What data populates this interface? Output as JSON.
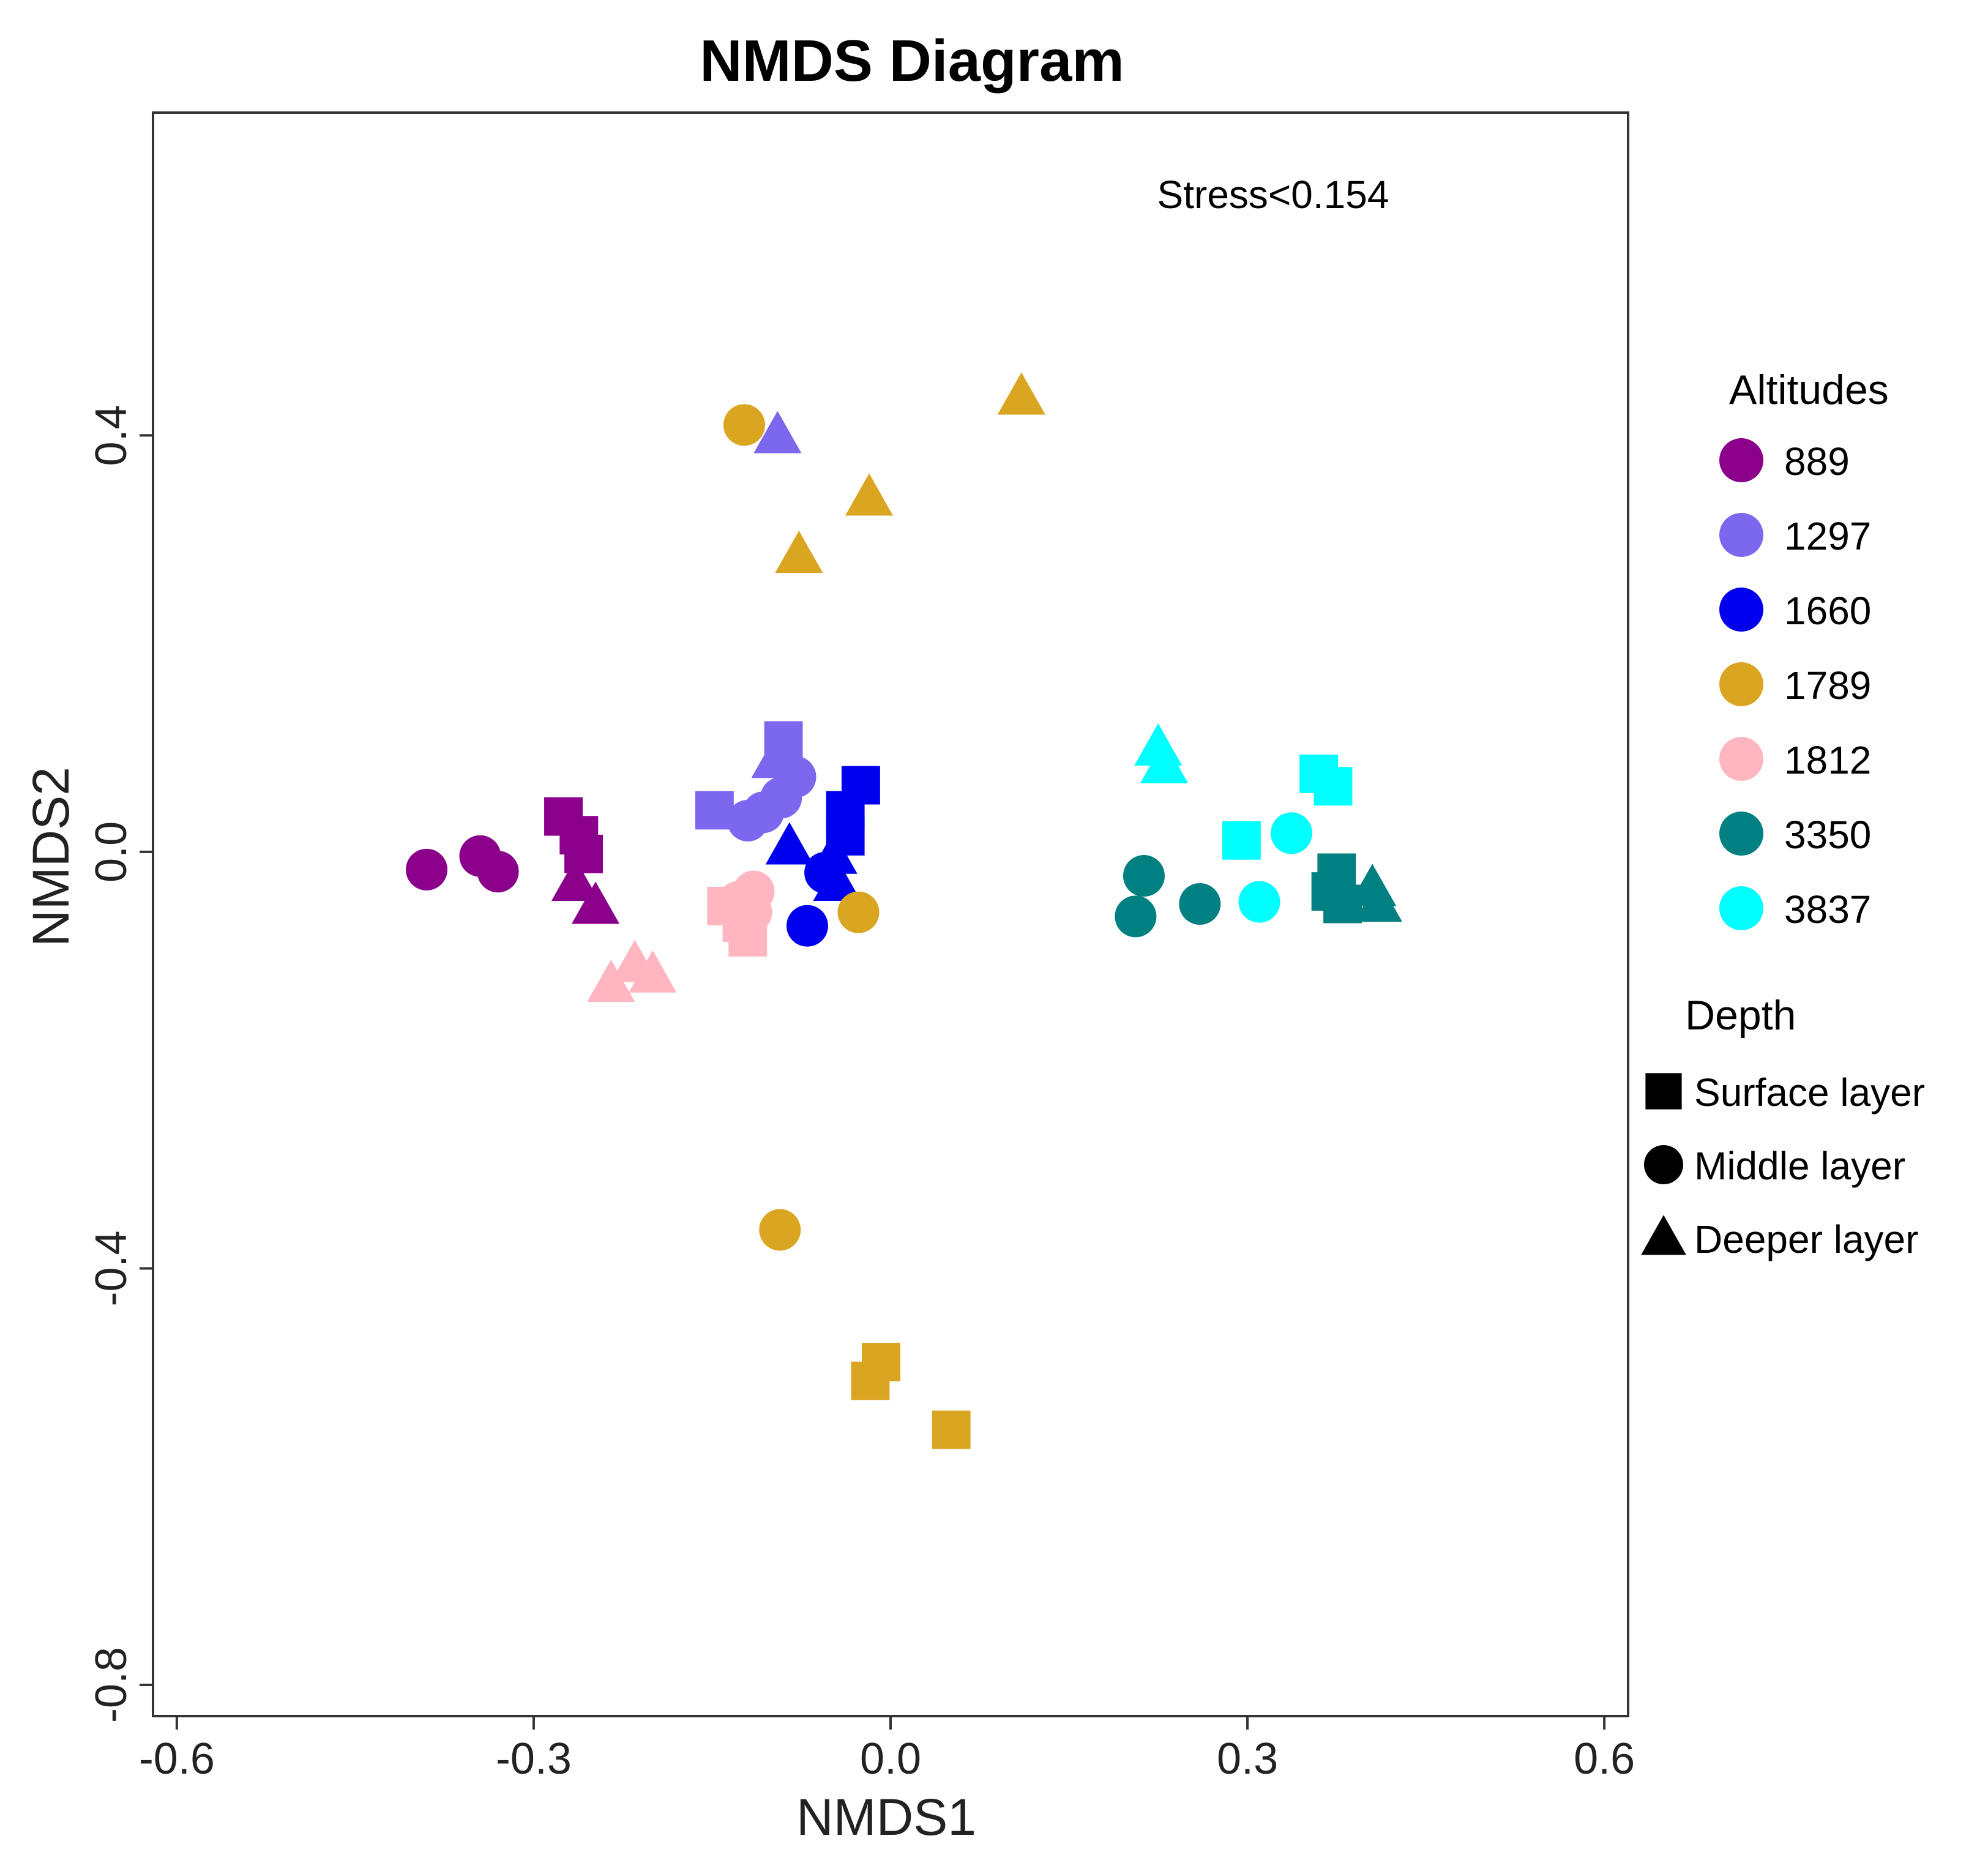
{
  "chart_data": {
    "type": "scatter",
    "title": "NMDS Diagram",
    "xlabel": "NMDS1",
    "ylabel": "NMDS2",
    "xlim": [
      -0.62,
      0.62
    ],
    "ylim": [
      -0.83,
      0.71
    ],
    "xticks": [
      -0.6,
      -0.3,
      0.0,
      0.3,
      0.6
    ],
    "xtick_labels": [
      "-0.6",
      "-0.3",
      "0.0",
      "0.3",
      "0.6"
    ],
    "yticks": [
      -0.8,
      -0.4,
      0.0,
      0.4
    ],
    "ytick_labels": [
      "-0.8",
      "-0.4",
      "0.0",
      "0.4"
    ],
    "grid": false,
    "annotation": "Stress<0.154",
    "legend_position": "right",
    "color_legend": {
      "title": "Altitudes",
      "entries": [
        {
          "label": "889",
          "color": "#8B008B"
        },
        {
          "label": "1297",
          "color": "#7B68EE"
        },
        {
          "label": "1660",
          "color": "#0000EE"
        },
        {
          "label": "1789",
          "color": "#DAA520"
        },
        {
          "label": "1812",
          "color": "#FFB6C1"
        },
        {
          "label": "3350",
          "color": "#008080"
        },
        {
          "label": "3837",
          "color": "#00FFFF"
        }
      ]
    },
    "shape_legend": {
      "title": "Depth",
      "entries": [
        {
          "label": "Surface layer",
          "shape": "square"
        },
        {
          "label": "Middle layer",
          "shape": "circle"
        },
        {
          "label": "Deeper layer",
          "shape": "triangle"
        }
      ]
    },
    "series": [
      {
        "name": "889",
        "points": [
          {
            "x": -0.39,
            "y": -0.017,
            "shape": "circle"
          },
          {
            "x": -0.345,
            "y": -0.004,
            "shape": "circle"
          },
          {
            "x": -0.33,
            "y": -0.019,
            "shape": "circle"
          },
          {
            "x": -0.275,
            "y": 0.034,
            "shape": "square"
          },
          {
            "x": -0.262,
            "y": 0.016,
            "shape": "square"
          },
          {
            "x": -0.258,
            "y": -0.002,
            "shape": "square"
          },
          {
            "x": -0.265,
            "y": -0.03,
            "shape": "triangle"
          },
          {
            "x": -0.248,
            "y": -0.052,
            "shape": "triangle"
          }
        ]
      },
      {
        "name": "1297",
        "points": [
          {
            "x": -0.095,
            "y": 0.4,
            "shape": "triangle"
          },
          {
            "x": -0.09,
            "y": 0.107,
            "shape": "square"
          },
          {
            "x": -0.097,
            "y": 0.088,
            "shape": "triangle"
          },
          {
            "x": -0.08,
            "y": 0.072,
            "shape": "circle"
          },
          {
            "x": -0.092,
            "y": 0.052,
            "shape": "circle"
          },
          {
            "x": -0.107,
            "y": 0.038,
            "shape": "circle"
          },
          {
            "x": -0.12,
            "y": 0.03,
            "shape": "circle"
          },
          {
            "x": -0.148,
            "y": 0.04,
            "shape": "square"
          }
        ]
      },
      {
        "name": "1660",
        "points": [
          {
            "x": -0.025,
            "y": 0.064,
            "shape": "square"
          },
          {
            "x": -0.038,
            "y": 0.04,
            "shape": "square"
          },
          {
            "x": -0.038,
            "y": 0.015,
            "shape": "square"
          },
          {
            "x": -0.085,
            "y": 0.005,
            "shape": "triangle"
          },
          {
            "x": -0.048,
            "y": -0.004,
            "shape": "triangle"
          },
          {
            "x": -0.055,
            "y": -0.02,
            "shape": "circle"
          },
          {
            "x": -0.045,
            "y": -0.03,
            "shape": "triangle"
          },
          {
            "x": -0.07,
            "y": -0.071,
            "shape": "circle"
          }
        ]
      },
      {
        "name": "1789",
        "points": [
          {
            "x": 0.11,
            "y": 0.437,
            "shape": "triangle"
          },
          {
            "x": -0.123,
            "y": 0.41,
            "shape": "circle"
          },
          {
            "x": -0.018,
            "y": 0.34,
            "shape": "triangle"
          },
          {
            "x": -0.077,
            "y": 0.285,
            "shape": "triangle"
          },
          {
            "x": -0.027,
            "y": -0.058,
            "shape": "circle"
          },
          {
            "x": -0.093,
            "y": -0.363,
            "shape": "circle"
          },
          {
            "x": -0.008,
            "y": -0.49,
            "shape": "square"
          },
          {
            "x": -0.017,
            "y": -0.508,
            "shape": "square"
          },
          {
            "x": 0.051,
            "y": -0.555,
            "shape": "square"
          }
        ]
      },
      {
        "name": "1812",
        "points": [
          {
            "x": -0.115,
            "y": -0.038,
            "shape": "circle"
          },
          {
            "x": -0.128,
            "y": -0.048,
            "shape": "circle"
          },
          {
            "x": -0.138,
            "y": -0.052,
            "shape": "square"
          },
          {
            "x": -0.117,
            "y": -0.058,
            "shape": "circle"
          },
          {
            "x": -0.125,
            "y": -0.068,
            "shape": "square"
          },
          {
            "x": -0.12,
            "y": -0.082,
            "shape": "square"
          },
          {
            "x": -0.215,
            "y": -0.108,
            "shape": "triangle"
          },
          {
            "x": -0.2,
            "y": -0.118,
            "shape": "triangle"
          },
          {
            "x": -0.235,
            "y": -0.127,
            "shape": "triangle"
          }
        ]
      },
      {
        "name": "3350",
        "points": [
          {
            "x": 0.213,
            "y": -0.023,
            "shape": "circle"
          },
          {
            "x": 0.206,
            "y": -0.062,
            "shape": "circle"
          },
          {
            "x": 0.26,
            "y": -0.05,
            "shape": "circle"
          },
          {
            "x": 0.375,
            "y": -0.02,
            "shape": "square"
          },
          {
            "x": 0.37,
            "y": -0.038,
            "shape": "square"
          },
          {
            "x": 0.38,
            "y": -0.05,
            "shape": "square"
          },
          {
            "x": 0.405,
            "y": -0.035,
            "shape": "triangle"
          },
          {
            "x": 0.41,
            "y": -0.05,
            "shape": "triangle"
          }
        ]
      },
      {
        "name": "3837",
        "points": [
          {
            "x": 0.225,
            "y": 0.1,
            "shape": "triangle"
          },
          {
            "x": 0.23,
            "y": 0.083,
            "shape": "triangle"
          },
          {
            "x": 0.36,
            "y": 0.075,
            "shape": "square"
          },
          {
            "x": 0.372,
            "y": 0.063,
            "shape": "square"
          },
          {
            "x": 0.337,
            "y": 0.018,
            "shape": "circle"
          },
          {
            "x": 0.295,
            "y": 0.011,
            "shape": "square"
          },
          {
            "x": 0.31,
            "y": -0.048,
            "shape": "circle"
          }
        ]
      }
    ]
  }
}
